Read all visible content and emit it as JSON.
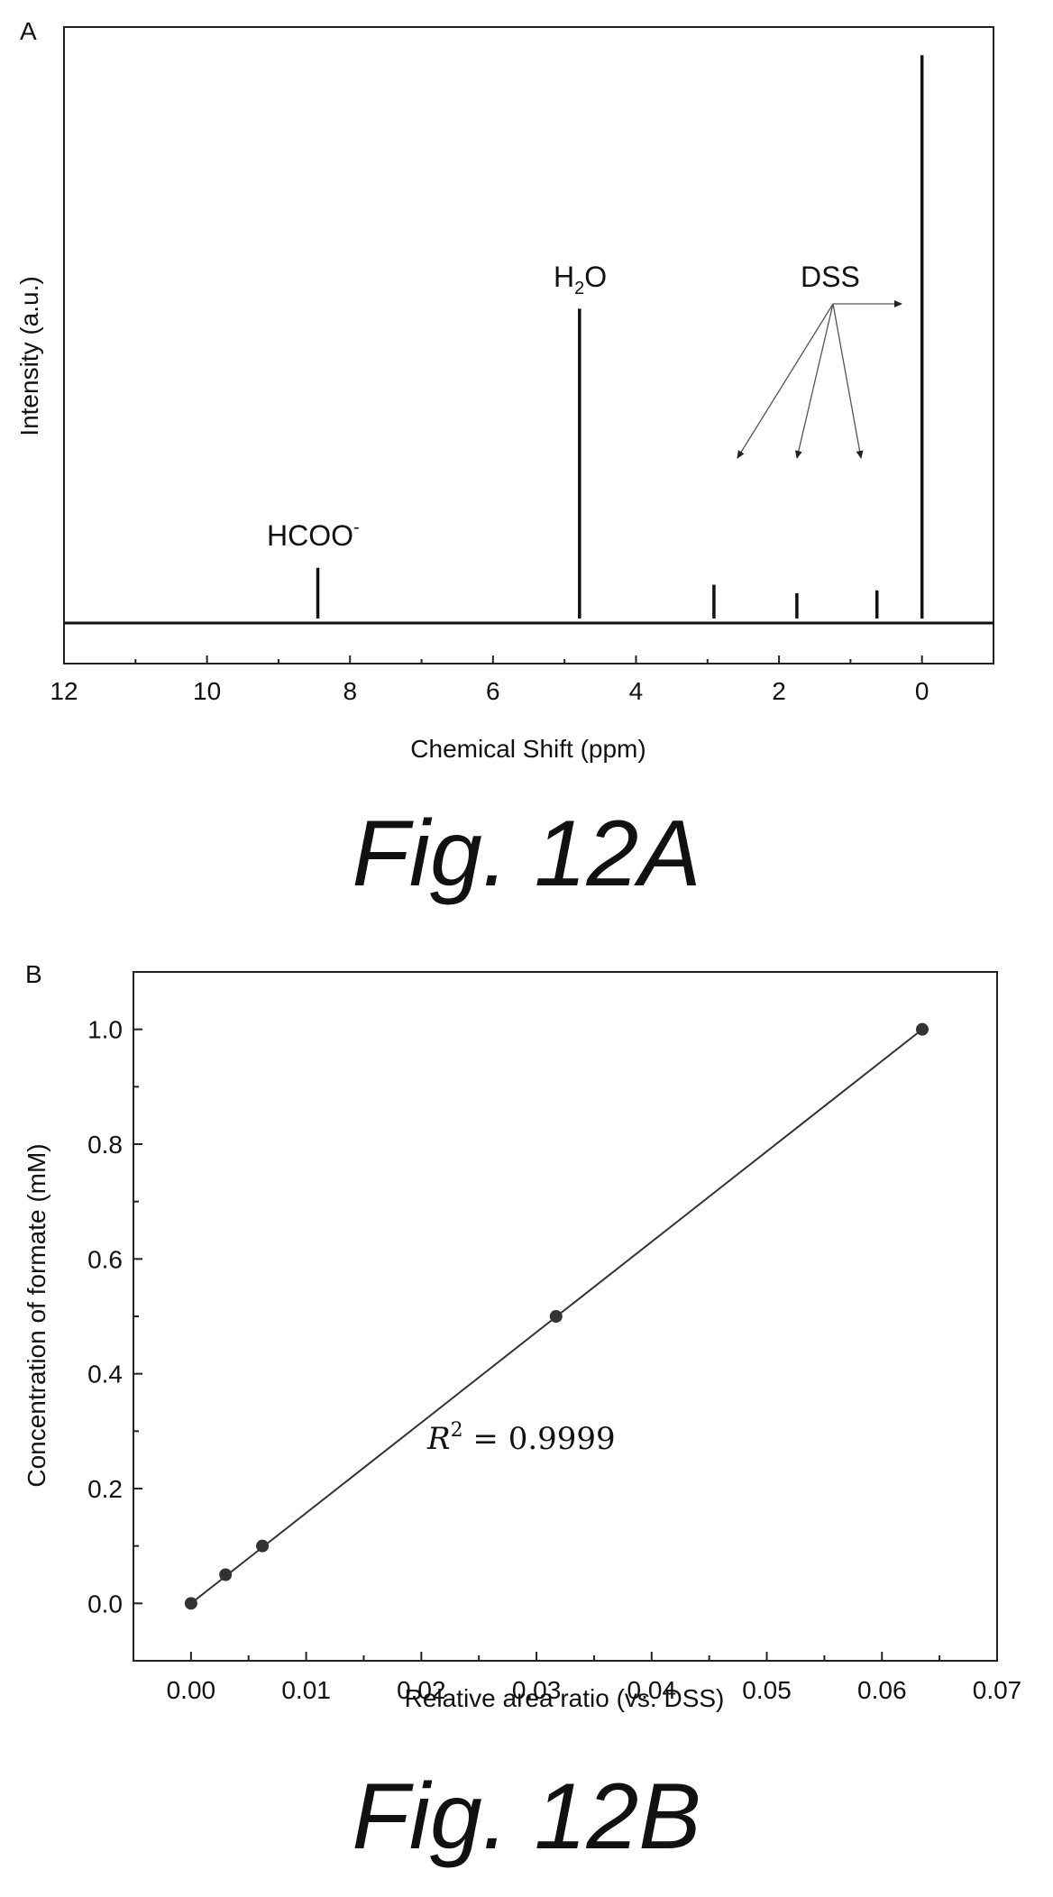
{
  "panel_a": {
    "panel_label": "A",
    "ylabel": "Intensity (a.u.)",
    "xlabel": "Chemical Shift (ppm)",
    "x_ticks": [
      "12",
      "10",
      "8",
      "6",
      "4",
      "2",
      "0"
    ],
    "annotations": {
      "hcoo": "HCOO",
      "hcoo_superscript": "-",
      "h2o_main": "H",
      "h2o_sub": "2",
      "h2o_end": "O",
      "dss": "DSS"
    }
  },
  "panel_b": {
    "panel_label": "B",
    "ylabel": "Concentration of formate (mM)",
    "xlabel": "Relative area ratio (vs. DSS)",
    "x_ticks": [
      "0.00",
      "0.01",
      "0.02",
      "0.03",
      "0.04",
      "0.05",
      "0.06",
      "0.07"
    ],
    "y_ticks": [
      "0.0",
      "0.2",
      "0.4",
      "0.6",
      "0.8",
      "1.0"
    ],
    "r2_symbol": "R",
    "r2_exponent": "2",
    "r2_rest": " = 0.9999"
  },
  "captions": {
    "fig_a": "Fig. 12A",
    "fig_b": "Fig. 12B"
  },
  "chart_data": [
    {
      "type": "line",
      "xlabel": "Chemical Shift (ppm)",
      "ylabel": "Intensity (a.u.)",
      "xlim": [
        12,
        -1
      ],
      "x_reversed": true,
      "ylim": [
        -0.08,
        1.05
      ],
      "grid": false,
      "peaks": [
        {
          "ppm": 8.45,
          "intensity": 0.09,
          "label": "HCOO-"
        },
        {
          "ppm": 4.79,
          "intensity": 0.55,
          "label": "H2O"
        },
        {
          "ppm": 2.91,
          "intensity": 0.06
        },
        {
          "ppm": 1.75,
          "intensity": 0.045
        },
        {
          "ppm": 0.63,
          "intensity": 0.05
        },
        {
          "ppm": 0.0,
          "intensity": 1.0
        }
      ],
      "annotations": [
        "HCOO-",
        "H2O",
        "DSS"
      ]
    },
    {
      "type": "scatter",
      "xlabel": "Relative area ratio (vs. DSS)",
      "ylabel": "Concentration of formate (mM)",
      "xlim": [
        -0.005,
        0.07
      ],
      "ylim": [
        -0.1,
        1.1
      ],
      "grid": false,
      "points": [
        {
          "x": 0.0,
          "y": 0.0
        },
        {
          "x": 0.003,
          "y": 0.05
        },
        {
          "x": 0.0062,
          "y": 0.1
        },
        {
          "x": 0.0317,
          "y": 0.5
        },
        {
          "x": 0.0635,
          "y": 1.0
        }
      ],
      "fit_line": {
        "x": [
          0.0,
          0.0635
        ],
        "y": [
          0.0,
          1.0
        ]
      },
      "annotation": "R^2 = 0.9999"
    }
  ]
}
